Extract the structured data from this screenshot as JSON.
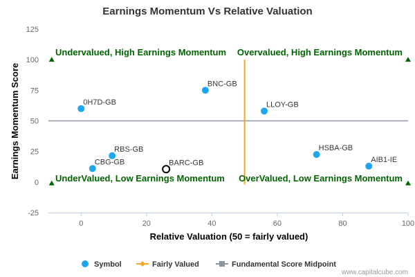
{
  "chart_data": {
    "type": "scatter",
    "title": "Earnings Momentum Vs Relative Valuation",
    "xlabel": "Relative Valuation (50 = fairly valued)",
    "ylabel": "Earnings Momentum Score",
    "xlim": [
      -10,
      100
    ],
    "ylim": [
      -25,
      125
    ],
    "x_ticks": [
      "0",
      "20",
      "40",
      "60",
      "80",
      "100"
    ],
    "y_ticks": [
      "-25",
      "0",
      "25",
      "50",
      "75",
      "100",
      "125"
    ],
    "grid": false,
    "legend_position": "bottom",
    "series": [
      {
        "name": "Symbol",
        "color": "#1ea6ef",
        "points": [
          {
            "label": "0H7D-GB",
            "x": 0,
            "y": 60
          },
          {
            "label": "BNC-GB",
            "x": 38,
            "y": 75
          },
          {
            "label": "LLOY-GB",
            "x": 56,
            "y": 58
          },
          {
            "label": "RBS-GB",
            "x": 9.5,
            "y": 21.5
          },
          {
            "label": "CBG-GB",
            "x": 3.5,
            "y": 11
          },
          {
            "label": "HSBA-GB",
            "x": 72,
            "y": 22.5
          },
          {
            "label": "AIB1-IE",
            "x": 88,
            "y": 13
          }
        ]
      }
    ],
    "highlighted_point": {
      "label": "BARC-GB",
      "x": 26,
      "y": 10.5
    },
    "fairly_valued": {
      "name": "Fairly Valued",
      "x": 50,
      "y_range": [
        -2,
        100
      ],
      "color": "#f5a623"
    },
    "midpoint": {
      "name": "Fundamental Score Midpoint",
      "y": 50,
      "x_range": [
        -10,
        100
      ],
      "color": "#8a95a0"
    },
    "quadrant_labels": [
      {
        "text": "Undervalued, High Earnings Momentum",
        "position": "top-left"
      },
      {
        "text": "Overvalued, High Earnings Momentum",
        "position": "top-right"
      },
      {
        "text": "UnderValued, Low Earnings Momentum",
        "position": "bottom-left"
      },
      {
        "text": "OverValued, Low Earnings Momentum",
        "position": "bottom-right"
      }
    ],
    "corner_markers": [
      {
        "x": -9,
        "y": 100
      },
      {
        "x": 100,
        "y": 100
      },
      {
        "x": -9,
        "y": -1
      },
      {
        "x": 100,
        "y": -1
      }
    ],
    "marker_color": "#006400",
    "legend": [
      "Symbol",
      "Fairly Valued",
      "Fundamental Score Midpoint"
    ]
  },
  "credit": "www.capitalcube.com"
}
